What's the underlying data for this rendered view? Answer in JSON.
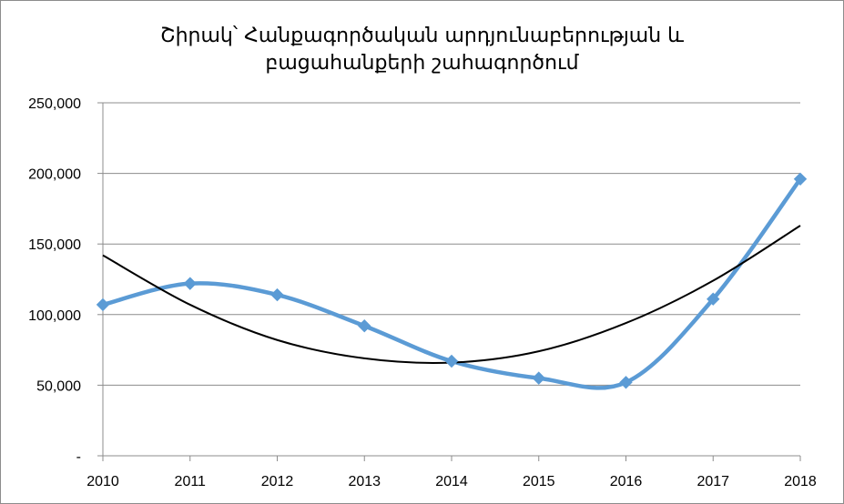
{
  "chart_data": {
    "type": "line",
    "title_lines": [
      "Շիրակ՝ Հանքագործական արդյունաբերության և",
      "բացահանքերի շահագործում"
    ],
    "categories": [
      "2010",
      "2011",
      "2012",
      "2013",
      "2014",
      "2015",
      "2016",
      "2017",
      "2018"
    ],
    "series": [
      {
        "values": [
          107000,
          122000,
          114000,
          92000,
          67000,
          55000,
          52000,
          111000,
          196000
        ],
        "color": "#5b9bd5",
        "marker": "diamond",
        "smooth": true
      }
    ],
    "trendline": {
      "type": "polynomial",
      "color": "#000000",
      "values": [
        142000,
        107000,
        82000,
        69000,
        66000,
        74000,
        94000,
        124000,
        163000
      ]
    },
    "ylim": [
      0,
      250000
    ],
    "yticks": [
      0,
      50000,
      100000,
      150000,
      200000,
      250000
    ],
    "ytick_labels": [
      "-",
      "50,000",
      "100,000",
      "150,000",
      "200,000",
      "250,000"
    ],
    "grid": true,
    "legend": "none"
  }
}
